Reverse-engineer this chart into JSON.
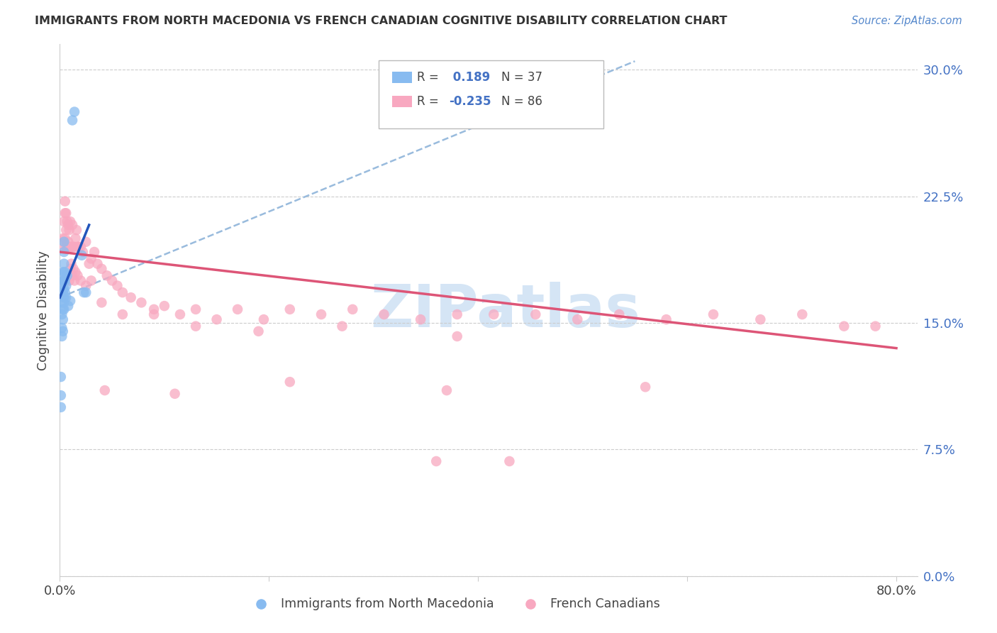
{
  "title": "IMMIGRANTS FROM NORTH MACEDONIA VS FRENCH CANADIAN COGNITIVE DISABILITY CORRELATION CHART",
  "source": "Source: ZipAtlas.com",
  "ylabel": "Cognitive Disability",
  "ytick_values": [
    0.0,
    0.075,
    0.15,
    0.225,
    0.3
  ],
  "ytick_labels": [
    "0.0%",
    "7.5%",
    "15.0%",
    "22.5%",
    "30.0%"
  ],
  "xlim": [
    0.0,
    0.82
  ],
  "ylim": [
    0.0,
    0.315
  ],
  "blue_scatter_color": "#88BBF0",
  "pink_scatter_color": "#F8A8C0",
  "blue_line_color": "#2255BB",
  "pink_line_color": "#DD5577",
  "dashed_line_color": "#99BBDD",
  "watermark": "ZIPatlas",
  "watermark_color": "#D5E5F5",
  "legend_R1": " 0.189",
  "legend_N1": "37",
  "legend_R2": "-0.235",
  "legend_N2": "86",
  "nm_x": [
    0.001,
    0.001,
    0.001,
    0.002,
    0.002,
    0.002,
    0.002,
    0.002,
    0.003,
    0.003,
    0.003,
    0.003,
    0.003,
    0.003,
    0.004,
    0.004,
    0.004,
    0.004,
    0.004,
    0.004,
    0.004,
    0.004,
    0.004,
    0.004,
    0.005,
    0.005,
    0.005,
    0.006,
    0.006,
    0.007,
    0.008,
    0.01,
    0.012,
    0.014,
    0.021,
    0.023,
    0.025
  ],
  "nm_y": [
    0.107,
    0.118,
    0.1,
    0.142,
    0.147,
    0.162,
    0.155,
    0.17,
    0.158,
    0.168,
    0.175,
    0.18,
    0.145,
    0.152,
    0.165,
    0.17,
    0.175,
    0.18,
    0.158,
    0.162,
    0.192,
    0.198,
    0.185,
    0.175,
    0.168,
    0.175,
    0.18,
    0.165,
    0.172,
    0.178,
    0.16,
    0.163,
    0.27,
    0.275,
    0.19,
    0.168,
    0.168
  ],
  "fc_x": [
    0.003,
    0.004,
    0.004,
    0.005,
    0.005,
    0.005,
    0.006,
    0.006,
    0.006,
    0.007,
    0.007,
    0.008,
    0.008,
    0.009,
    0.009,
    0.01,
    0.01,
    0.011,
    0.012,
    0.012,
    0.013,
    0.014,
    0.015,
    0.016,
    0.017,
    0.018,
    0.02,
    0.022,
    0.025,
    0.028,
    0.03,
    0.033,
    0.036,
    0.04,
    0.045,
    0.05,
    0.055,
    0.06,
    0.068,
    0.078,
    0.09,
    0.1,
    0.115,
    0.13,
    0.15,
    0.17,
    0.195,
    0.22,
    0.25,
    0.28,
    0.31,
    0.345,
    0.38,
    0.415,
    0.455,
    0.495,
    0.535,
    0.58,
    0.625,
    0.67,
    0.71,
    0.75,
    0.78,
    0.009,
    0.01,
    0.011,
    0.012,
    0.013,
    0.014,
    0.015,
    0.017,
    0.02,
    0.025,
    0.03,
    0.04,
    0.06,
    0.09,
    0.13,
    0.19,
    0.27,
    0.38,
    0.043,
    0.11,
    0.22,
    0.37,
    0.56,
    0.36,
    0.43
  ],
  "fc_y": [
    0.2,
    0.195,
    0.21,
    0.2,
    0.215,
    0.222,
    0.195,
    0.205,
    0.215,
    0.195,
    0.21,
    0.198,
    0.208,
    0.195,
    0.205,
    0.195,
    0.21,
    0.195,
    0.195,
    0.208,
    0.195,
    0.195,
    0.2,
    0.205,
    0.195,
    0.195,
    0.195,
    0.192,
    0.198,
    0.185,
    0.188,
    0.192,
    0.185,
    0.182,
    0.178,
    0.175,
    0.172,
    0.168,
    0.165,
    0.162,
    0.158,
    0.16,
    0.155,
    0.158,
    0.152,
    0.158,
    0.152,
    0.158,
    0.155,
    0.158,
    0.155,
    0.152,
    0.155,
    0.155,
    0.155,
    0.152,
    0.155,
    0.152,
    0.155,
    0.152,
    0.155,
    0.148,
    0.148,
    0.175,
    0.182,
    0.185,
    0.178,
    0.182,
    0.175,
    0.18,
    0.178,
    0.175,
    0.172,
    0.175,
    0.162,
    0.155,
    0.155,
    0.148,
    0.145,
    0.148,
    0.142,
    0.11,
    0.108,
    0.115,
    0.11,
    0.112,
    0.068,
    0.068
  ],
  "blue_line_x0": 0.0,
  "blue_line_y0": 0.165,
  "blue_line_x1": 0.028,
  "blue_line_y1": 0.208,
  "pink_line_x0": 0.0,
  "pink_line_y0": 0.192,
  "pink_line_x1": 0.8,
  "pink_line_y1": 0.135,
  "dash_line_x0": 0.0,
  "dash_line_y0": 0.165,
  "dash_line_x1": 0.55,
  "dash_line_y1": 0.305
}
